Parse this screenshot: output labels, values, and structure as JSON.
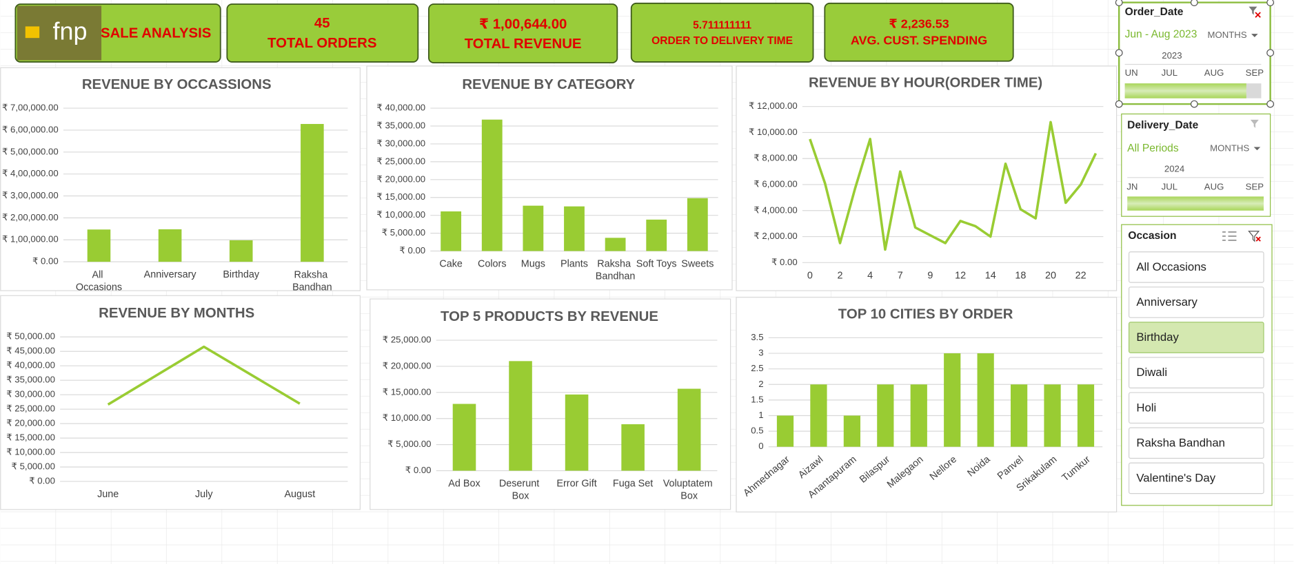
{
  "header": {
    "logo": "fnp",
    "title": "SALE ANALYSIS"
  },
  "kpis": [
    {
      "value": 45,
      "label": "TOTAL ORDERS"
    },
    {
      "value": "₹ 1,00,644.00",
      "label": "TOTAL REVENUE"
    },
    {
      "value": 5.711111111,
      "label": "ORDER TO DELIVERY TIME"
    },
    {
      "value": "₹ 2,236.53",
      "label": "AVG. CUST. SPENDING"
    }
  ],
  "chart_data": [
    {
      "type": "bar",
      "title": "REVENUE BY OCCASSIONS",
      "categories": [
        "All Occasions",
        "Anniversary",
        "Birthday",
        "Raksha Bandhan"
      ],
      "values": [
        147000,
        148000,
        98000,
        628000
      ],
      "color": "#99cc33",
      "ylim": [
        0,
        700000
      ],
      "yticks": [
        {
          "value": 0,
          "label": "₹ 0.00"
        },
        {
          "value": 100000,
          "label": "₹ 1,00,000.00"
        },
        {
          "value": 200000,
          "label": "₹ 2,00,000.00"
        },
        {
          "value": 300000,
          "label": "₹ 3,00,000.00"
        },
        {
          "value": 400000,
          "label": "₹ 4,00,000.00"
        },
        {
          "value": 500000,
          "label": "₹ 5,00,000.00"
        },
        {
          "value": 600000,
          "label": "₹ 6,00,000.00"
        },
        {
          "value": 700000,
          "label": "₹ 7,00,000.00"
        }
      ],
      "grid": true
    },
    {
      "type": "bar",
      "title": "REVENUE BY CATEGORY",
      "categories": [
        "Cake",
        "Colors",
        "Mugs",
        "Plants",
        "Raksha Bandhan",
        "Soft Toys",
        "Sweets"
      ],
      "values": [
        11100,
        36800,
        12700,
        12500,
        3700,
        8800,
        14800
      ],
      "color": "#99cc33",
      "ylim": [
        0,
        40000
      ],
      "yticks": [
        {
          "value": 0,
          "label": "₹ 0.00"
        },
        {
          "value": 5000,
          "label": "₹ 5,000.00"
        },
        {
          "value": 10000,
          "label": "₹ 10,000.00"
        },
        {
          "value": 15000,
          "label": "₹ 15,000.00"
        },
        {
          "value": 20000,
          "label": "₹ 20,000.00"
        },
        {
          "value": 25000,
          "label": "₹ 25,000.00"
        },
        {
          "value": 30000,
          "label": "₹ 30,000.00"
        },
        {
          "value": 35000,
          "label": "₹ 35,000.00"
        },
        {
          "value": 40000,
          "label": "₹ 40,000.00"
        }
      ],
      "grid": true
    },
    {
      "type": "line",
      "title": "REVENUE BY HOUR(ORDER TIME)",
      "categories": [
        "0",
        null,
        "2",
        null,
        "4",
        null,
        "7",
        null,
        "9",
        null,
        "12",
        null,
        "14",
        null,
        "18",
        null,
        "20",
        null,
        "22",
        null
      ],
      "values": [
        9500,
        6100,
        1500,
        5700,
        9500,
        1000,
        7000,
        2700,
        2100,
        1500,
        3200,
        2800,
        2000,
        7600,
        4100,
        3400,
        10800,
        4600,
        6000,
        8400
      ],
      "color": "#99cc33",
      "ylim": [
        0,
        12000
      ],
      "yticks": [
        {
          "value": 0,
          "label": "₹ 0.00"
        },
        {
          "value": 2000,
          "label": "₹ 2,000.00"
        },
        {
          "value": 4000,
          "label": "₹ 4,000.00"
        },
        {
          "value": 6000,
          "label": "₹ 6,000.00"
        },
        {
          "value": 8000,
          "label": "₹ 8,000.00"
        },
        {
          "value": 10000,
          "label": "₹ 10,000.00"
        },
        {
          "value": 12000,
          "label": "₹ 12,000.00"
        }
      ],
      "grid": true
    },
    {
      "type": "line",
      "title": "REVENUE BY MONTHS",
      "categories": [
        "June",
        "July",
        "August"
      ],
      "values": [
        26600,
        46600,
        26900
      ],
      "color": "#99cc33",
      "ylim": [
        0,
        50000
      ],
      "yticks": [
        {
          "value": 0,
          "label": "₹ 0.00"
        },
        {
          "value": 5000,
          "label": "₹ 5,000.00"
        },
        {
          "value": 10000,
          "label": "₹ 10,000.00"
        },
        {
          "value": 15000,
          "label": "₹ 15,000.00"
        },
        {
          "value": 20000,
          "label": "₹ 20,000.00"
        },
        {
          "value": 25000,
          "label": "₹ 25,000.00"
        },
        {
          "value": 30000,
          "label": "₹ 30,000.00"
        },
        {
          "value": 35000,
          "label": "₹ 35,000.00"
        },
        {
          "value": 40000,
          "label": "₹ 40,000.00"
        },
        {
          "value": 45000,
          "label": "₹ 45,000.00"
        },
        {
          "value": 50000,
          "label": "₹ 50,000.00"
        }
      ],
      "grid": true
    },
    {
      "type": "bar",
      "title": "TOP 5 PRODUCTS BY REVENUE",
      "categories": [
        "Ad Box",
        "Deserunt Box",
        "Error Gift",
        "Fuga Set",
        "Voluptatem Box"
      ],
      "values": [
        12800,
        21000,
        14600,
        8900,
        15700
      ],
      "color": "#99cc33",
      "ylim": [
        0,
        25000
      ],
      "yticks": [
        {
          "value": 0,
          "label": "₹ 0.00"
        },
        {
          "value": 5000,
          "label": "₹ 5,000.00"
        },
        {
          "value": 10000,
          "label": "₹ 10,000.00"
        },
        {
          "value": 15000,
          "label": "₹ 15,000.00"
        },
        {
          "value": 20000,
          "label": "₹ 20,000.00"
        },
        {
          "value": 25000,
          "label": "₹ 25,000.00"
        }
      ],
      "grid": true
    },
    {
      "type": "bar",
      "title": "TOP 10 CITIES BY ORDER",
      "categories": [
        "Ahmednagar",
        "Aizawl",
        "Anantapuram",
        "Bilaspur",
        "Malegaon",
        "Nellore",
        "Noida",
        "Panvel",
        "Srikakulam",
        "Tumkur"
      ],
      "values": [
        1,
        2,
        1,
        2,
        2,
        3,
        3,
        2,
        2,
        2
      ],
      "color": "#99cc33",
      "ylim": [
        0,
        3.5
      ],
      "yticks": [
        0,
        0.5,
        1,
        1.5,
        2,
        2.5,
        3,
        3.5
      ],
      "grid": true
    }
  ],
  "slicers": {
    "order_date": {
      "title": "Order_Date",
      "selection": "Jun - Aug 2023",
      "level": "MONTHS",
      "year": "2023",
      "months": [
        "UN",
        "JUL",
        "AUG",
        "SEP"
      ]
    },
    "delivery_date": {
      "title": "Delivery_Date",
      "selection": "All Periods",
      "level": "MONTHS",
      "year": "2024",
      "months": [
        "JN",
        "JUL",
        "AUG",
        "SEP"
      ]
    },
    "occasion": {
      "title": "Occasion",
      "items": [
        "All Occasions",
        "Anniversary",
        "Birthday",
        "Diwali",
        "Holi",
        "Raksha Bandhan",
        "Valentine's Day"
      ],
      "selected": "Birthday"
    }
  }
}
